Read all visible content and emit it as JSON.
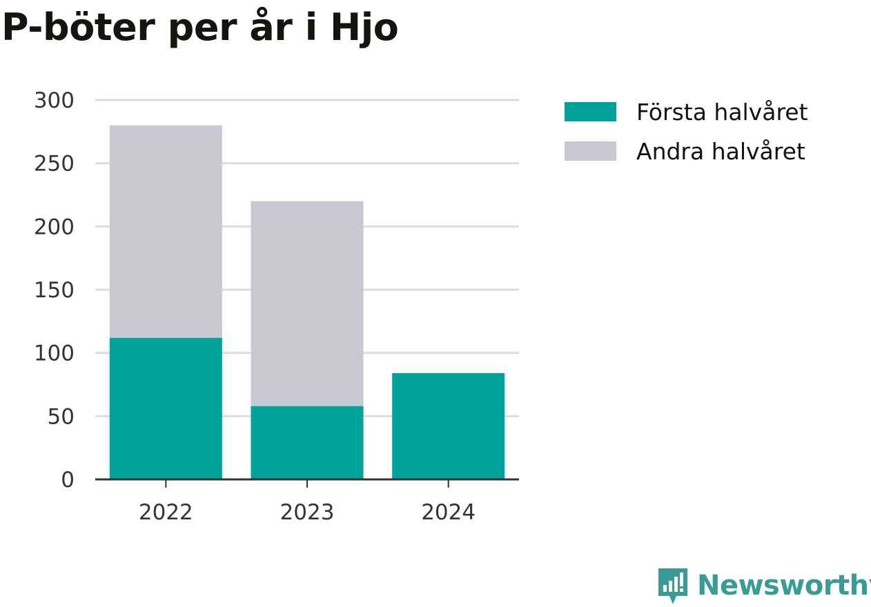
{
  "chart_data": {
    "type": "bar",
    "stacked": true,
    "title": "P-böter per år i Hjo",
    "xlabel": "",
    "ylabel": "",
    "categories": [
      "2022",
      "2023",
      "2024"
    ],
    "series": [
      {
        "name": "Första halvåret",
        "color": "#00a39a",
        "values": [
          112,
          58,
          84
        ]
      },
      {
        "name": "Andra halvåret",
        "color": "#c8c8d2",
        "values": [
          168,
          162,
          0
        ]
      }
    ],
    "ylim": [
      0,
      300
    ],
    "yticks": [
      0,
      50,
      100,
      150,
      200,
      250,
      300
    ],
    "grid": true,
    "legend_position": "top-right"
  },
  "brand": {
    "name": "Newsworthy",
    "icon": "newsworthy-logo-icon",
    "color": "#3a9a95"
  }
}
